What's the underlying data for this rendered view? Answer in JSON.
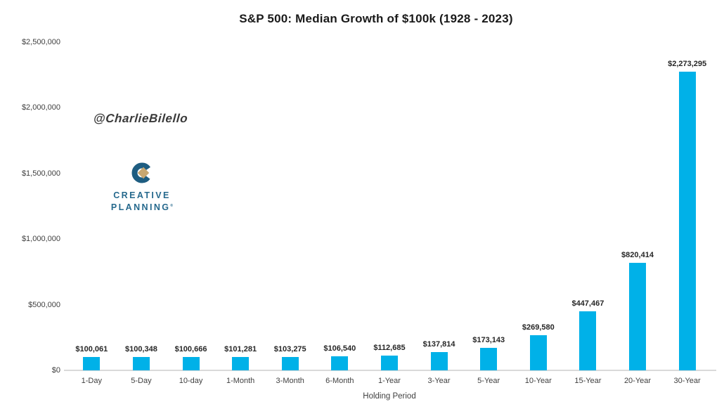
{
  "watermark": "@CharlieBilello",
  "logo": {
    "line1": "CREATIVE",
    "line2": "PLANNING",
    "trademark": "®",
    "text_color": "#26698d",
    "ring_color": "#1e5d81",
    "diamond_color": "#c8a770"
  },
  "chart_data": {
    "type": "bar",
    "title": "S&P 500: Median Growth of $100k (1928 - 2023)",
    "xlabel": "Holding Period",
    "ylabel": "",
    "categories": [
      "1-Day",
      "5-Day",
      "10-day",
      "1-Month",
      "3-Month",
      "6-Month",
      "1-Year",
      "3-Year",
      "5-Year",
      "10-Year",
      "15-Year",
      "20-Year",
      "30-Year"
    ],
    "values": [
      100061,
      100348,
      100666,
      101281,
      103275,
      106540,
      112685,
      137814,
      173143,
      269580,
      447467,
      820414,
      2273295
    ],
    "labels": [
      "$100,061",
      "$100,348",
      "$100,666",
      "$101,281",
      "$103,275",
      "$106,540",
      "$112,685",
      "$137,814",
      "$173,143",
      "$269,580",
      "$447,467",
      "$820,414",
      "$2,273,295"
    ],
    "ylim": [
      0,
      2500000
    ],
    "y_ticks": [
      "$2,500,000",
      "$2,000,000",
      "$1,500,000",
      "$1,000,000",
      "$500,000",
      "$0"
    ],
    "y_tick_values": [
      2500000,
      2000000,
      1500000,
      1000000,
      500000,
      0
    ],
    "bar_color": "#00b1e8",
    "grid": false,
    "legend": false
  }
}
